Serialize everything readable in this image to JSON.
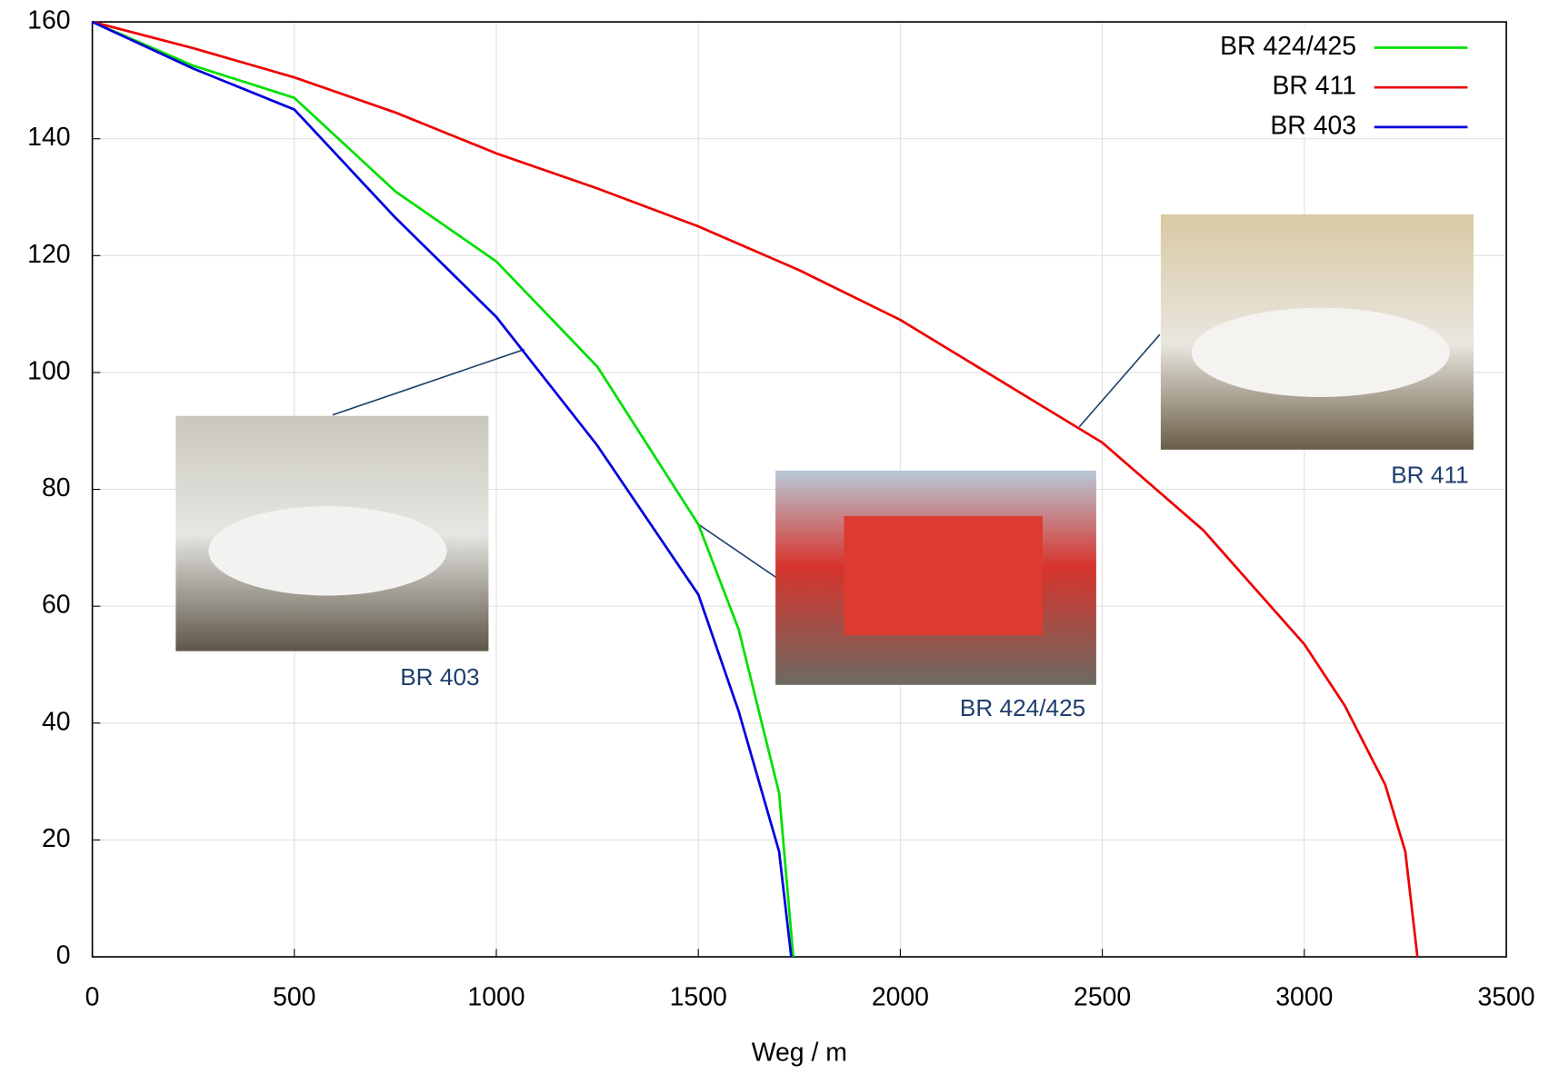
{
  "chart_data": {
    "type": "line",
    "xlabel": "Weg / m",
    "xlim": [
      0,
      3500
    ],
    "xticks": [
      0,
      500,
      1000,
      1500,
      2000,
      2500,
      3000,
      3500
    ],
    "ylim": [
      0,
      160
    ],
    "yticks": [
      0,
      20,
      40,
      60,
      80,
      100,
      120,
      140,
      160
    ],
    "grid": true,
    "legend": "upper right",
    "series": [
      {
        "name": "BR 424/425",
        "color": "#00e000",
        "x": [
          0,
          250,
          500,
          750,
          1000,
          1250,
          1500,
          1600,
          1700,
          1735
        ],
        "values": [
          160,
          152.5,
          147,
          131,
          119,
          101,
          74,
          56,
          28,
          0
        ]
      },
      {
        "name": "BR 411",
        "color": "#ee0000",
        "x": [
          0,
          250,
          500,
          750,
          1000,
          1250,
          1500,
          1750,
          2000,
          2250,
          2500,
          2750,
          3000,
          3100,
          3200,
          3250,
          3280
        ],
        "values": [
          160,
          155.5,
          150.5,
          144.5,
          137.5,
          131.5,
          125,
          117.5,
          109,
          98.5,
          88,
          73,
          53.5,
          43,
          29.5,
          18,
          0
        ]
      },
      {
        "name": "BR 403",
        "color": "#0000dd",
        "x": [
          0,
          250,
          500,
          750,
          1000,
          1250,
          1500,
          1600,
          1700,
          1730
        ],
        "values": [
          160,
          152,
          145,
          126.5,
          109.5,
          87.5,
          62,
          42,
          18,
          0
        ]
      }
    ],
    "annotations": [
      "BR 403",
      "BR 424/425",
      "BR 411"
    ]
  }
}
